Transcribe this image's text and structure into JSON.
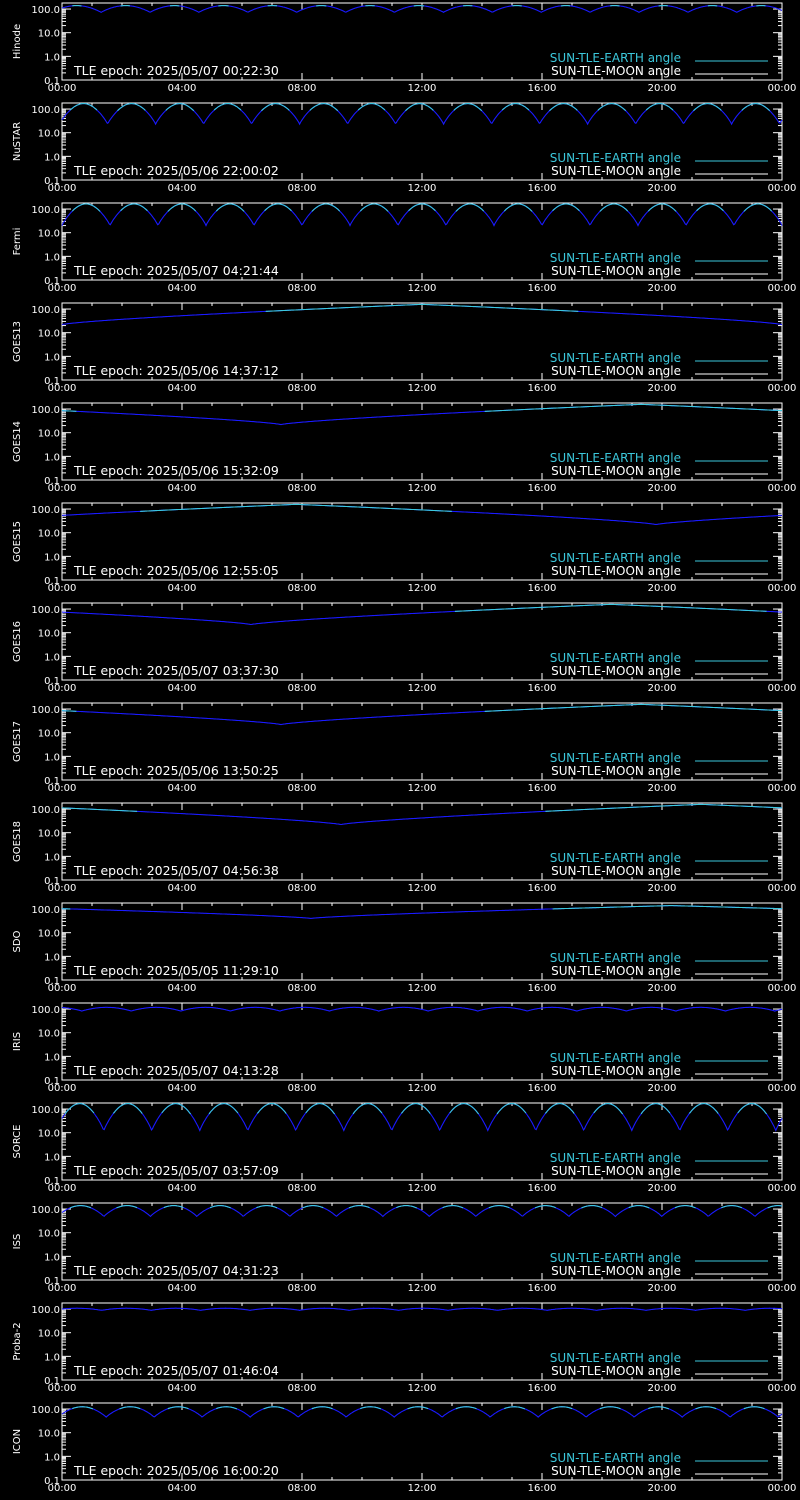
{
  "colors": {
    "background": "#000000",
    "axis": "#ffffff",
    "sun_earth": "#3cc8dc",
    "sun_moon_legend": "#ffffff",
    "curve_dip": "#1a1aff"
  },
  "legend": {
    "earth_label": "SUN-TLE-EARTH angle",
    "moon_label": "SUN-TLE-MOON angle"
  },
  "x_tick_labels": [
    "00:00",
    "04:00",
    "08:00",
    "12:00",
    "16:00",
    "20:00",
    "00:00"
  ],
  "y_tick_labels": [
    "100.0",
    "10.0",
    "1.0",
    "0.1"
  ],
  "chart_data": [
    {
      "type": "line",
      "ylabel": "Hinode",
      "epoch_text": "TLE epoch: 2025/05/07 00:22:30",
      "xlim": [
        0,
        24
      ],
      "ylim": [
        0.1,
        180
      ],
      "yscale": "log",
      "series": [
        {
          "name": "SUN-TLE-EARTH angle",
          "kind": "periodic",
          "period": 1.63,
          "phase": 0.2,
          "max": 140,
          "min": 72,
          "x_range": [
            0,
            24
          ]
        }
      ]
    },
    {
      "type": "line",
      "ylabel": "NuSTAR",
      "epoch_text": "TLE epoch: 2025/05/06 22:00:02",
      "xlim": [
        0,
        24
      ],
      "ylim": [
        0.1,
        180
      ],
      "yscale": "log",
      "series": [
        {
          "name": "SUN-TLE-EARTH angle",
          "kind": "periodic",
          "period": 1.6,
          "phase": 0.05,
          "max": 170,
          "min": 23,
          "x_range": [
            0,
            24
          ]
        }
      ]
    },
    {
      "type": "line",
      "ylabel": "Fermi",
      "epoch_text": "TLE epoch: 2025/05/07 04:21:44",
      "xlim": [
        0,
        24
      ],
      "ylim": [
        0.1,
        180
      ],
      "yscale": "log",
      "series": [
        {
          "name": "SUN-TLE-EARTH angle",
          "kind": "periodic",
          "period": 1.6,
          "phase": 0.0,
          "max": 165,
          "min": 20,
          "x_range": [
            0,
            24
          ]
        }
      ]
    },
    {
      "type": "line",
      "ylabel": "GOES13",
      "epoch_text": "TLE epoch: 2025/05/06 14:37:12",
      "xlim": [
        0,
        24
      ],
      "ylim": [
        0.1,
        180
      ],
      "yscale": "log",
      "series": [
        {
          "name": "SUN-TLE-EARTH angle",
          "kind": "daily",
          "min_t": 0,
          "max": 158,
          "min": 22,
          "x_range": [
            0,
            24
          ]
        }
      ]
    },
    {
      "type": "line",
      "ylabel": "GOES14",
      "epoch_text": "TLE epoch: 2025/05/06 15:32:09",
      "xlim": [
        0,
        24
      ],
      "ylim": [
        0.1,
        180
      ],
      "yscale": "log",
      "series": [
        {
          "name": "SUN-TLE-EARTH angle",
          "kind": "daily",
          "min_t": 7.3,
          "max": 158,
          "min": 22,
          "x_range": [
            0,
            24
          ]
        }
      ]
    },
    {
      "type": "line",
      "ylabel": "GOES15",
      "epoch_text": "TLE epoch: 2025/05/06 12:55:05",
      "xlim": [
        0,
        24
      ],
      "ylim": [
        0.1,
        180
      ],
      "yscale": "log",
      "series": [
        {
          "name": "SUN-TLE-EARTH angle",
          "kind": "daily",
          "min_t": 19.8,
          "max": 158,
          "min": 22,
          "x_range": [
            0,
            24
          ]
        }
      ]
    },
    {
      "type": "line",
      "ylabel": "GOES16",
      "epoch_text": "TLE epoch: 2025/05/07 03:37:30",
      "xlim": [
        0,
        24
      ],
      "ylim": [
        0.1,
        180
      ],
      "yscale": "log",
      "series": [
        {
          "name": "SUN-TLE-EARTH angle",
          "kind": "daily",
          "min_t": 6.3,
          "max": 158,
          "min": 22,
          "x_range": [
            0,
            24
          ]
        }
      ]
    },
    {
      "type": "line",
      "ylabel": "GOES17",
      "epoch_text": "TLE epoch: 2025/05/06 13:50:25",
      "xlim": [
        0,
        24
      ],
      "ylim": [
        0.1,
        180
      ],
      "yscale": "log",
      "series": [
        {
          "name": "SUN-TLE-EARTH angle",
          "kind": "daily",
          "min_t": 7.3,
          "max": 158,
          "min": 22,
          "x_range": [
            0,
            24
          ]
        }
      ]
    },
    {
      "type": "line",
      "ylabel": "GOES18",
      "epoch_text": "TLE epoch: 2025/05/07 04:56:38",
      "xlim": [
        0,
        24
      ],
      "ylim": [
        0.1,
        180
      ],
      "yscale": "log",
      "series": [
        {
          "name": "SUN-TLE-EARTH angle",
          "kind": "daily",
          "min_t": 9.3,
          "max": 158,
          "min": 22,
          "x_range": [
            0,
            24
          ]
        }
      ]
    },
    {
      "type": "line",
      "ylabel": "SDO",
      "epoch_text": "TLE epoch: 2025/05/05 11:29:10",
      "xlim": [
        0,
        24
      ],
      "ylim": [
        0.1,
        180
      ],
      "yscale": "log",
      "series": [
        {
          "name": "SUN-TLE-EARTH angle",
          "kind": "daily",
          "min_t": 8.3,
          "max": 140,
          "min": 40,
          "x_range": [
            0,
            24
          ]
        }
      ]
    },
    {
      "type": "line",
      "ylabel": "IRIS",
      "epoch_text": "TLE epoch: 2025/05/07 04:13:28",
      "xlim": [
        0,
        24
      ],
      "ylim": [
        0.1,
        180
      ],
      "yscale": "log",
      "series": [
        {
          "name": "SUN-TLE-EARTH angle",
          "kind": "periodic",
          "period": 1.65,
          "phase": 0.6,
          "max": 118,
          "min": 82,
          "x_range": [
            0,
            24
          ]
        }
      ]
    },
    {
      "type": "line",
      "ylabel": "SORCE",
      "epoch_text": "TLE epoch: 2025/05/07 03:57:09",
      "xlim": [
        0,
        24
      ],
      "ylim": [
        0.1,
        180
      ],
      "yscale": "log",
      "series": [
        {
          "name": "SUN-TLE-EARTH angle",
          "kind": "periodic",
          "period": 1.6,
          "phase": 0.13,
          "max": 170,
          "min": 12,
          "x_range": [
            0,
            24
          ]
        }
      ]
    },
    {
      "type": "line",
      "ylabel": "ISS",
      "epoch_text": "TLE epoch: 2025/05/07 04:31:23",
      "xlim": [
        0,
        24
      ],
      "ylim": [
        0.1,
        180
      ],
      "yscale": "log",
      "series": [
        {
          "name": "SUN-TLE-EARTH angle",
          "kind": "periodic",
          "period": 1.55,
          "phase": 0.1,
          "max": 140,
          "min": 48,
          "x_range": [
            0,
            24
          ]
        }
      ]
    },
    {
      "type": "line",
      "ylabel": "Proba-2",
      "epoch_text": "TLE epoch: 2025/05/07 01:46:04",
      "xlim": [
        0,
        24
      ],
      "ylim": [
        0.1,
        180
      ],
      "yscale": "log",
      "series": [
        {
          "name": "SUN-TLE-EARTH angle",
          "kind": "periodic",
          "period": 1.65,
          "phase": 0.2,
          "max": 108,
          "min": 88,
          "x_range": [
            0,
            24
          ]
        }
      ]
    },
    {
      "type": "line",
      "ylabel": "ICON",
      "epoch_text": "TLE epoch: 2025/05/06 16:00:20",
      "xlim": [
        0,
        24
      ],
      "ylim": [
        0.1,
        180
      ],
      "yscale": "log",
      "series": [
        {
          "name": "SUN-TLE-EARTH angle",
          "kind": "periodic",
          "period": 1.6,
          "phase": 0.08,
          "max": 125,
          "min": 45,
          "x_range": [
            0,
            24
          ]
        }
      ]
    }
  ]
}
